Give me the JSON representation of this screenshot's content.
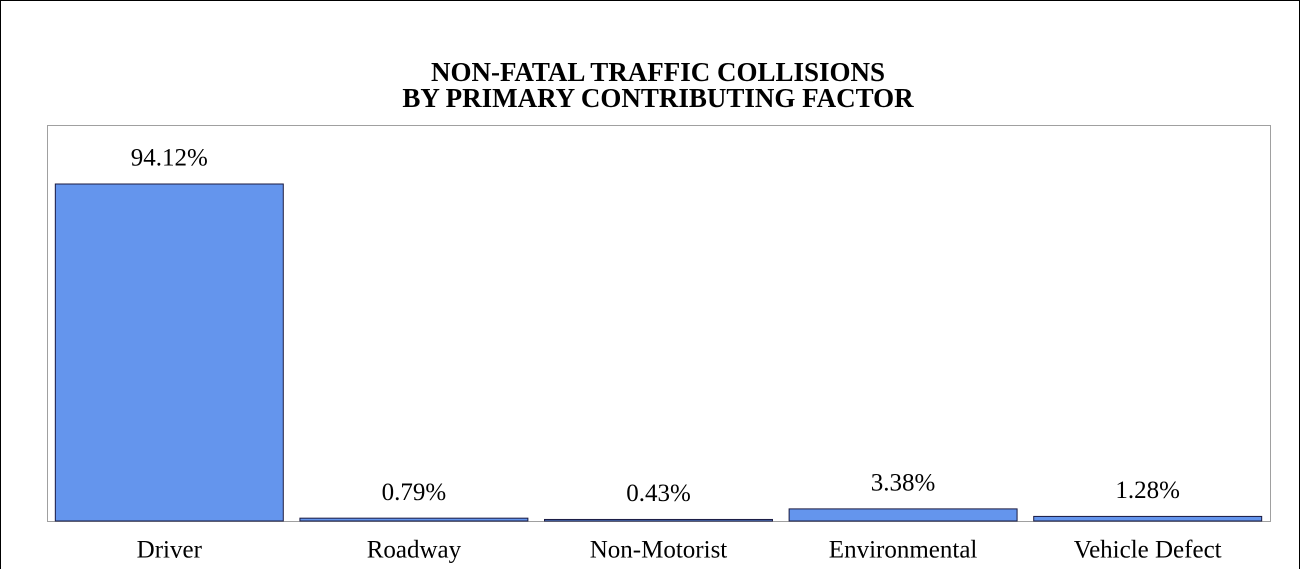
{
  "chart_data": {
    "type": "bar",
    "title": [
      "NON-FATAL TRAFFIC COLLISIONS",
      "BY PRIMARY CONTRIBUTING FACTOR"
    ],
    "categories": [
      "Driver",
      "Roadway",
      "Non-Motorist",
      "Environmental",
      "Vehicle Defect"
    ],
    "values": [
      94.12,
      0.79,
      0.43,
      3.38,
      1.28
    ],
    "value_labels": [
      "94.12%",
      "0.79%",
      "0.43%",
      "3.38%",
      "1.28%"
    ],
    "color": "#6495ed"
  }
}
